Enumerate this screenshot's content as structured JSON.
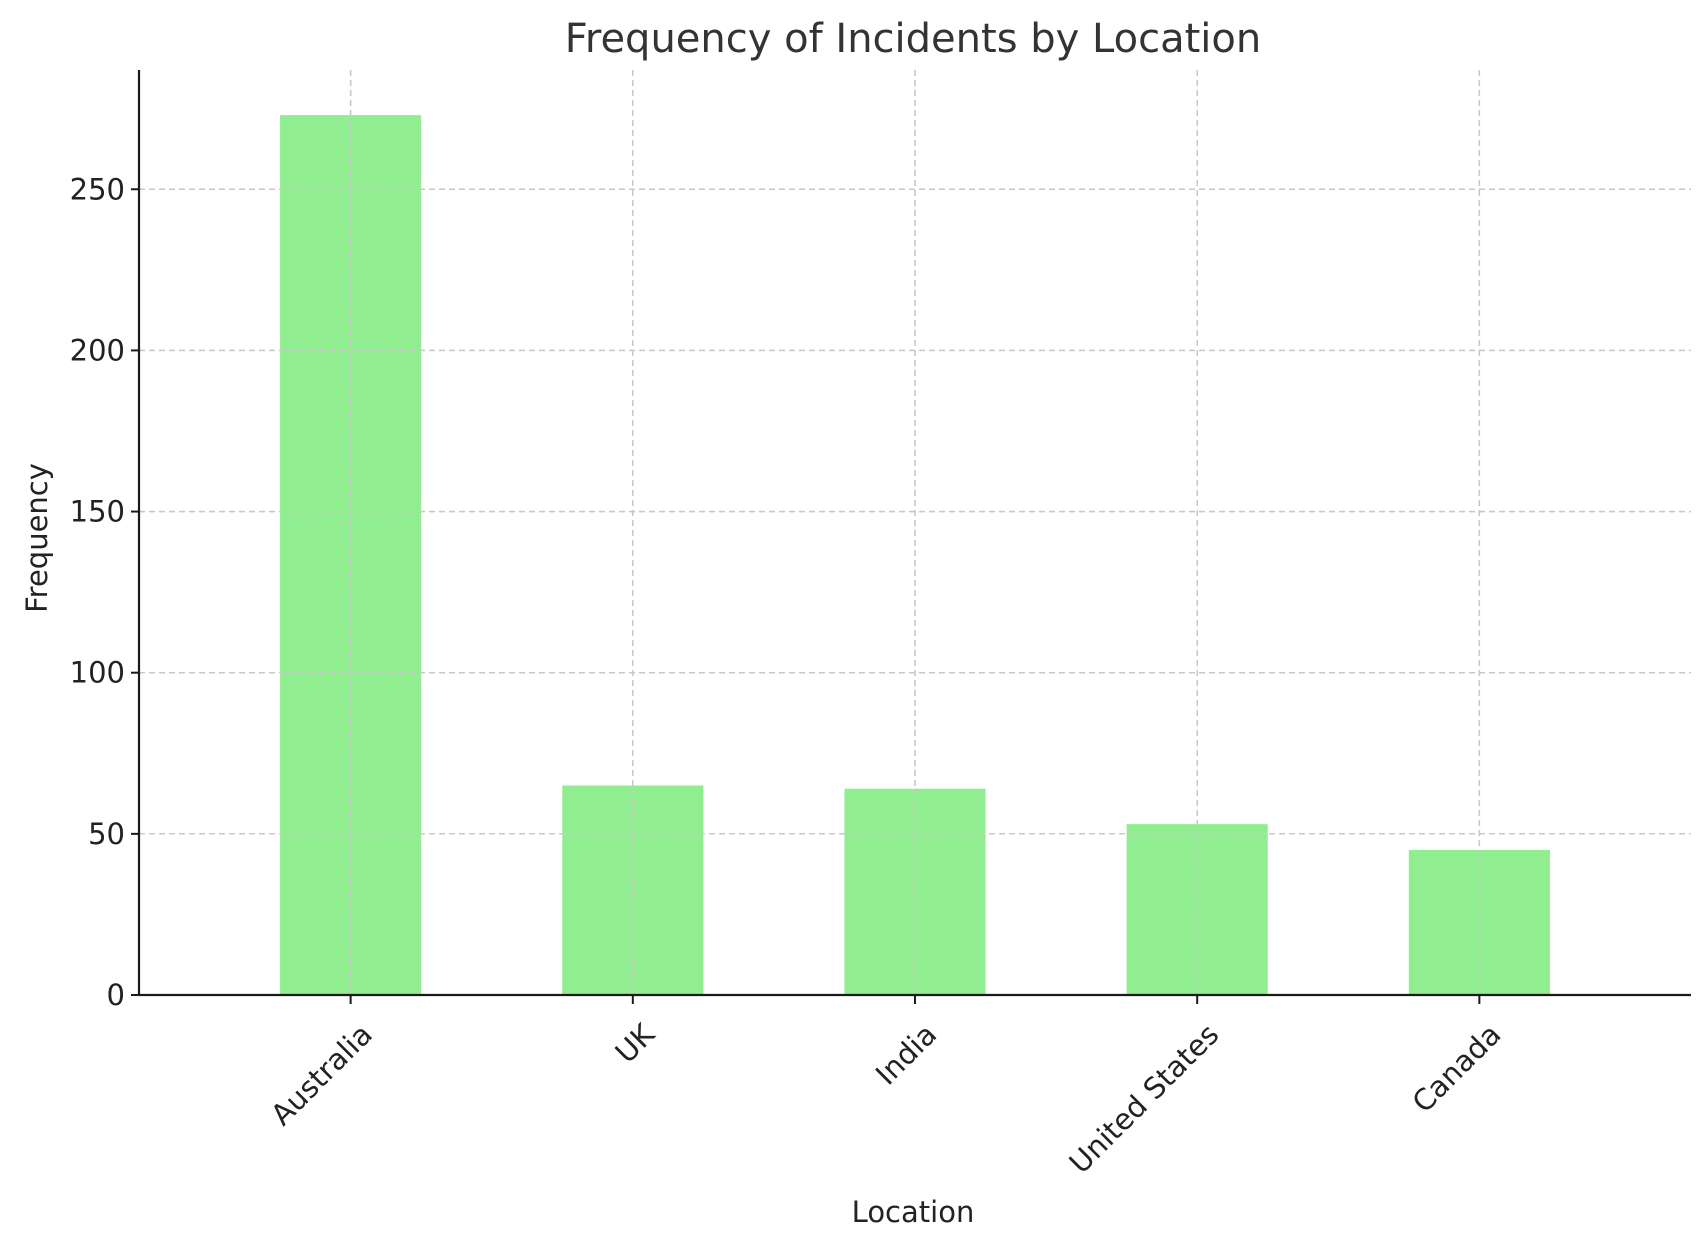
{
  "chart_data": {
    "type": "bar",
    "title": "Frequency of Incidents by Location",
    "xlabel": "Location",
    "ylabel": "Frequency",
    "categories": [
      "Australia",
      "UK",
      "India",
      "United States",
      "Canada"
    ],
    "values": [
      273,
      65,
      64,
      53,
      45
    ],
    "ylim": [
      0,
      287
    ],
    "yticks": [
      0,
      50,
      100,
      150,
      200,
      250
    ],
    "x_tick_rotation": 45,
    "grid": true,
    "bar_color": "#90EE90",
    "grid_color": "#c8c8c8",
    "axis_color": "#1a1a1a",
    "text_color": "#222222"
  }
}
